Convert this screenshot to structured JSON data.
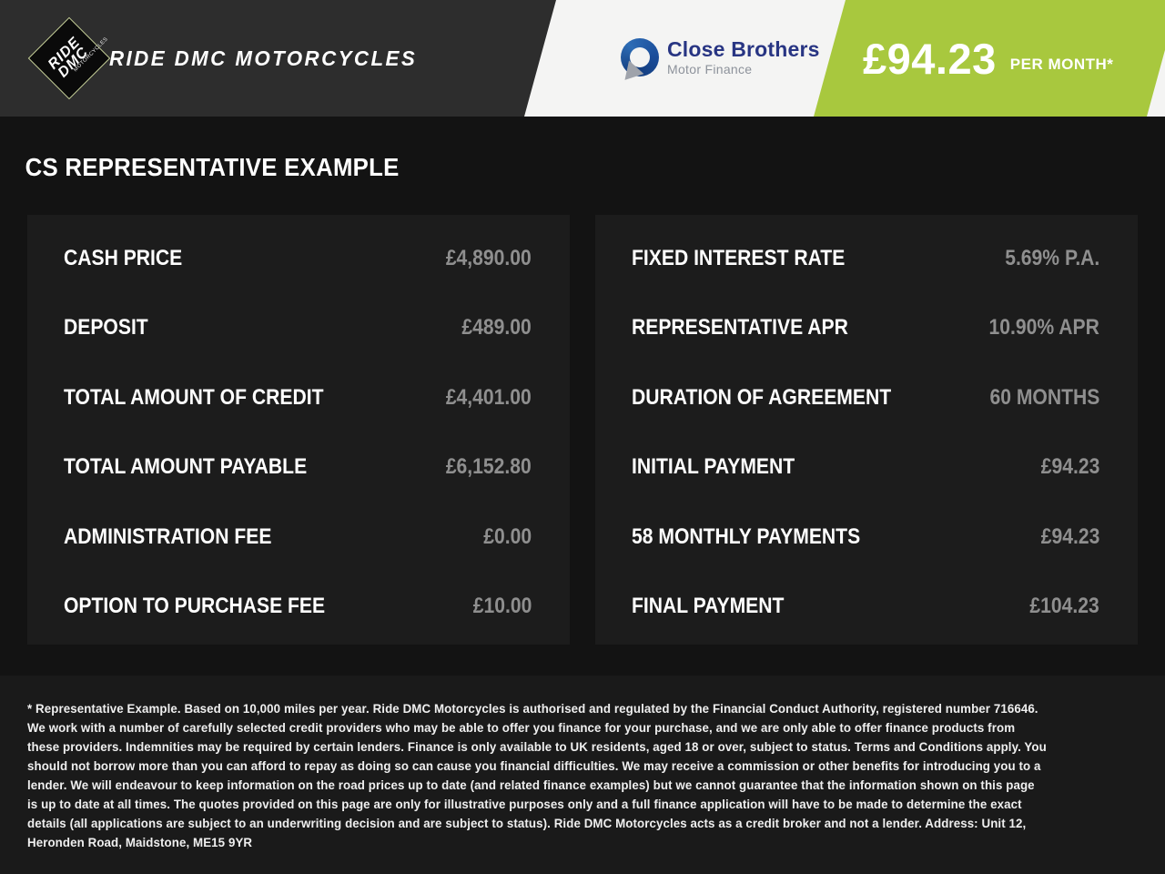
{
  "header": {
    "dealer_name": "RIDE DMC MOTORCYCLES",
    "logo": {
      "word1": "RIDE",
      "word2": "DMC",
      "edge_text": "MOTORCYCLES"
    },
    "lender": {
      "name": "Close Brothers",
      "subtitle": "Motor Finance"
    },
    "monthly_price": {
      "amount": "£94.23",
      "suffix": "PER MONTH*"
    }
  },
  "page_title": "CS REPRESENTATIVE EXAMPLE",
  "tables": {
    "left": [
      {
        "label": "CASH PRICE",
        "value": "£4,890.00"
      },
      {
        "label": "DEPOSIT",
        "value": "£489.00"
      },
      {
        "label": "TOTAL AMOUNT OF CREDIT",
        "value": "£4,401.00"
      },
      {
        "label": "TOTAL AMOUNT PAYABLE",
        "value": "£6,152.80"
      },
      {
        "label": "ADMINISTRATION FEE",
        "value": "£0.00"
      },
      {
        "label": "OPTION TO PURCHASE FEE",
        "value": "£10.00"
      }
    ],
    "right": [
      {
        "label": "FIXED INTEREST RATE",
        "value": "5.69% P.A."
      },
      {
        "label": "REPRESENTATIVE APR",
        "value": "10.90% APR"
      },
      {
        "label": "DURATION OF AGREEMENT",
        "value": "60 MONTHS"
      },
      {
        "label": "INITIAL PAYMENT",
        "value": "£94.23"
      },
      {
        "label": "58 MONTHLY PAYMENTS",
        "value": "£94.23"
      },
      {
        "label": "FINAL PAYMENT",
        "value": "£104.23"
      }
    ]
  },
  "disclaimer": "* Representative Example. Based on 10,000 miles per year. Ride DMC Motorcycles is authorised and regulated by the Financial Conduct Authority, registered number 716646. We work with a number of carefully selected credit providers who may be able to offer you finance for your purchase, and we are only able to offer finance products from these providers. Indemnities may be required by certain lenders. Finance is only available to UK residents, aged 18 or over, subject to status. Terms and Conditions apply. You should not borrow more than you can afford to repay as doing so can cause you financial difficulties. We may receive a commission or other benefits for introducing you to a lender. We will endeavour to keep information on the road prices up to date (and related finance examples) but we cannot guarantee that the information shown on this page is up to date at all times. The quotes provided on this page are only for illustrative purposes only and a full finance application will have to be made to determine the exact details (all applications are subject to an underwriting decision and are subject to status). Ride DMC Motorcycles acts as a credit broker and not a lender. Address: Unit 12, Heronden Road, Maidstone, ME15 9YR",
  "colors": {
    "accent_green": "#a8c83e",
    "header_dark": "#2d2d2d",
    "page_background": "#131313",
    "panel_background": "#1c1c1c",
    "brand_navy": "#283583",
    "value_gray": "#8f8f8f"
  }
}
